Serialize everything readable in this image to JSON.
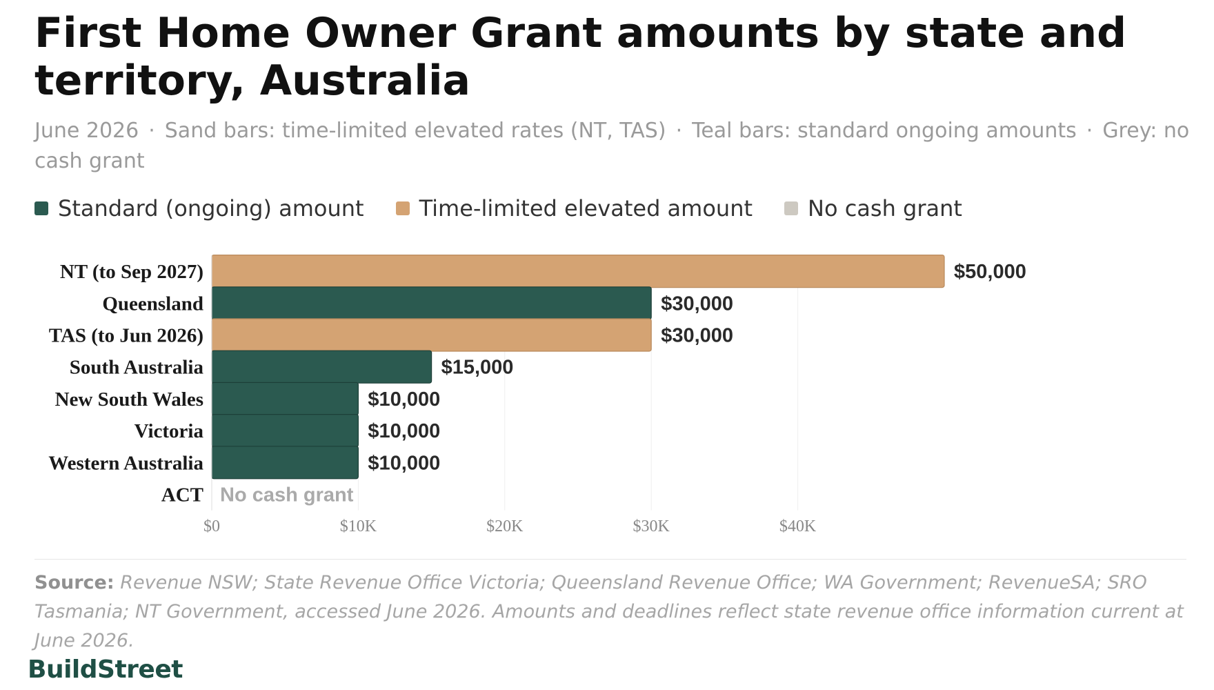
{
  "header": {
    "title": "First Home Owner Grant amounts by state and territory, Australia",
    "subtitle_parts": [
      "June 2026",
      "Sand bars: time-limited elevated rates (NT, TAS)",
      "Teal bars: standard ongoing amounts",
      "Grey: no cash grant"
    ],
    "separator": "·"
  },
  "legend": {
    "items": [
      {
        "label": "Standard (ongoing) amount",
        "color": "#2b5a50"
      },
      {
        "label": "Time-limited elevated amount",
        "color": "#d4a373"
      },
      {
        "label": "No cash grant",
        "color": "#cdc9c1"
      }
    ]
  },
  "chart_data": {
    "type": "bar",
    "orientation": "horizontal",
    "categories": [
      "NT (to Sep 2027)",
      "Queensland",
      "TAS (to Jun 2026)",
      "South Australia",
      "New South Wales",
      "Victoria",
      "Western Australia",
      "ACT"
    ],
    "values": [
      50000,
      30000,
      30000,
      15000,
      10000,
      10000,
      10000,
      0
    ],
    "bar_type": [
      "elevated",
      "standard",
      "elevated",
      "standard",
      "standard",
      "standard",
      "standard",
      "none"
    ],
    "data_labels": [
      "$50,000",
      "$30,000",
      "$30,000",
      "$15,000",
      "$10,000",
      "$10,000",
      "$10,000",
      "No cash grant"
    ],
    "xlim": [
      0,
      50000
    ],
    "xticks": [
      0,
      10000,
      20000,
      30000,
      40000
    ],
    "xtick_labels": [
      "$0",
      "$10K",
      "$20K",
      "$30K",
      "$40K"
    ],
    "grid": true,
    "colors": {
      "standard": "#2b5a50",
      "elevated": "#d4a373",
      "none": "#cdc9c1"
    }
  },
  "footer": {
    "source_lead": "Source:",
    "source_text": "Revenue NSW; State Revenue Office Victoria; Queensland Revenue Office; WA Government; RevenueSA; SRO Tasmania; NT Government, accessed June 2026. Amounts and deadlines reflect state revenue office information current at June 2026.",
    "brand": "BuildStreet"
  }
}
